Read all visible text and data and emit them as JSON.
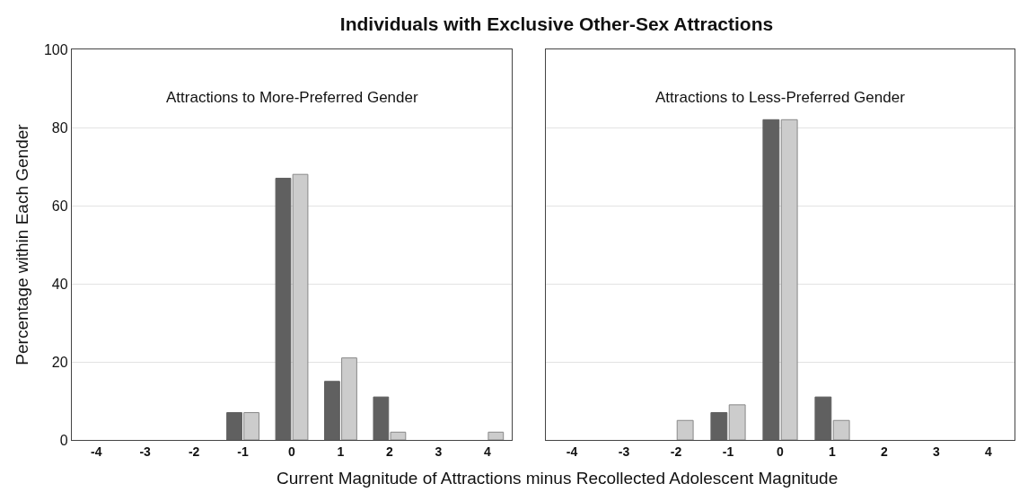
{
  "chart_data": [
    {
      "type": "bar",
      "title": "Individuals with Exclusive Other-Sex Attractions",
      "subtitle": "Attractions to More-Preferred Gender",
      "xlabel": "Current Magnitude of Attractions minus Recollected Adolescent Magnitude",
      "ylabel": "Percentage within Each Gender",
      "categories": [
        "-4",
        "-3",
        "-2",
        "-1",
        "0",
        "1",
        "2",
        "3",
        "4"
      ],
      "series": [
        {
          "color": "#606060",
          "values": [
            0,
            0,
            0,
            7,
            67,
            15,
            11,
            0,
            0
          ]
        },
        {
          "color": "#cccccc",
          "values": [
            0,
            0,
            0,
            7,
            68,
            21,
            2,
            0,
            2
          ]
        }
      ],
      "ylim": [
        0,
        100
      ],
      "yticks": [
        0,
        20,
        40,
        60,
        80,
        100
      ],
      "grid": "y"
    },
    {
      "type": "bar",
      "subtitle": "Attractions to Less-Preferred Gender",
      "categories": [
        "-4",
        "-3",
        "-2",
        "-1",
        "0",
        "1",
        "2",
        "3",
        "4"
      ],
      "series": [
        {
          "color": "#606060",
          "values": [
            0,
            0,
            0,
            7,
            82,
            11,
            0,
            0,
            0
          ]
        },
        {
          "color": "#cccccc",
          "values": [
            0,
            0,
            5,
            9,
            82,
            5,
            0,
            0,
            0
          ]
        }
      ],
      "ylim": [
        0,
        100
      ],
      "yticks": [
        0,
        20,
        40,
        60,
        80,
        100
      ],
      "grid": "y",
      "tick_labels": "x"
    }
  ]
}
